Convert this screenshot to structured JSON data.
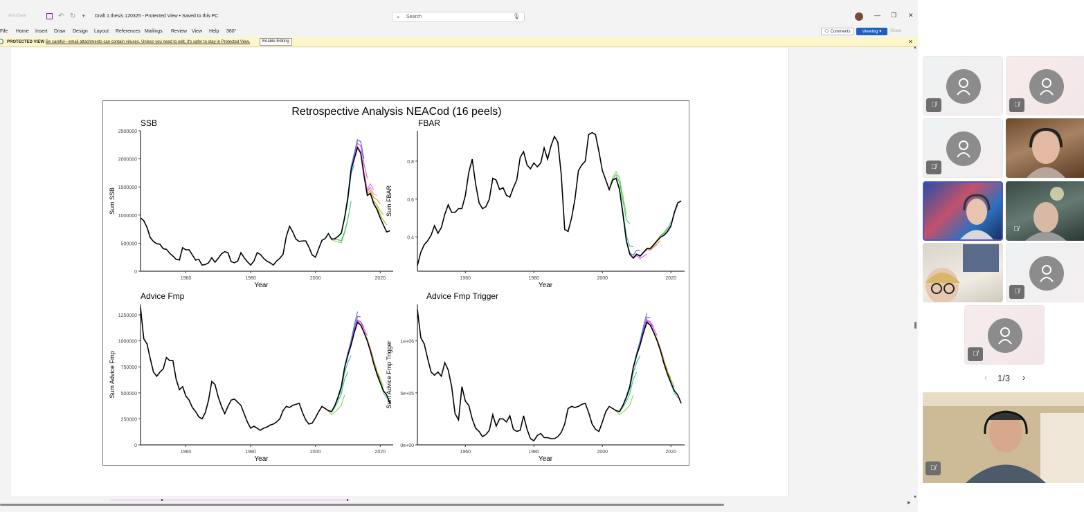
{
  "word": {
    "autosave_label": "AutoSave",
    "doc_title": "Draft 1 thesis 120325 - Protected View • Saved to this PC",
    "search_placeholder": "Search",
    "menu": [
      "File",
      "Home",
      "Insert",
      "Draw",
      "Design",
      "Layout",
      "References",
      "Mailings",
      "Review",
      "View",
      "Help",
      "360°"
    ],
    "comments_label": "Comments",
    "viewing_label": "Viewing",
    "share_label": "Share",
    "protected_label": "PROTECTED VIEW",
    "protected_message": "Be careful—email attachments can contain viruses. Unless you need to edit, it's safer to stay in Protected View.",
    "enable_editing_label": "Enable Editing"
  },
  "chart_data": {
    "title": "Retrospective Analysis NEACod (16 peels)",
    "panels": [
      {
        "type": "line",
        "name": "SSB",
        "xlabel": "Year",
        "ylabel": "Sum SSB",
        "xlim": [
          1946,
          2024
        ],
        "ylim": [
          0,
          2500000
        ],
        "xticks": [
          "1960",
          "1980",
          "2000",
          "2020"
        ],
        "yticks": [
          "0",
          "500000",
          "1000000",
          "1500000",
          "2000000",
          "2500000"
        ],
        "ytick_values": [
          0,
          500000,
          1000000,
          1500000,
          2000000,
          2500000
        ],
        "x": [
          1946,
          1947,
          1948,
          1949,
          1950,
          1951,
          1952,
          1953,
          1954,
          1955,
          1956,
          1957,
          1958,
          1959,
          1960,
          1961,
          1962,
          1963,
          1964,
          1965,
          1966,
          1967,
          1968,
          1969,
          1970,
          1971,
          1972,
          1973,
          1974,
          1975,
          1976,
          1977,
          1978,
          1979,
          1980,
          1981,
          1982,
          1983,
          1984,
          1985,
          1986,
          1987,
          1988,
          1989,
          1990,
          1991,
          1992,
          1993,
          1994,
          1995,
          1996,
          1997,
          1998,
          1999,
          2000,
          2001,
          2002,
          2003,
          2004,
          2005,
          2006,
          2007,
          2008,
          2009,
          2010,
          2011,
          2012,
          2013,
          2014,
          2015,
          2016,
          2017,
          2018,
          2019,
          2020,
          2021,
          2022,
          2023
        ],
        "y": [
          950000,
          900000,
          780000,
          600000,
          530000,
          490000,
          480000,
          400000,
          390000,
          320000,
          270000,
          210000,
          200000,
          420000,
          380000,
          380000,
          290000,
          200000,
          210000,
          110000,
          120000,
          150000,
          240000,
          160000,
          230000,
          310000,
          350000,
          330000,
          170000,
          150000,
          180000,
          330000,
          240000,
          170000,
          110000,
          180000,
          330000,
          300000,
          230000,
          180000,
          150000,
          110000,
          180000,
          230000,
          300000,
          620000,
          800000,
          700000,
          570000,
          530000,
          540000,
          540000,
          430000,
          290000,
          250000,
          400000,
          550000,
          580000,
          670000,
          570000,
          580000,
          620000,
          680000,
          950000,
          1300000,
          1800000,
          2000000,
          2200000,
          2100000,
          1700000,
          1350000,
          1380000,
          1200000,
          1100000,
          950000,
          820000,
          700000,
          720000
        ],
        "peel_ends": [
          [
            2010,
            910000
          ],
          [
            2011,
            1250000
          ],
          [
            2012,
            1900000
          ],
          [
            2013,
            2350000
          ],
          [
            2014,
            2300000
          ],
          [
            2015,
            2000000
          ],
          [
            2016,
            1650000
          ],
          [
            2017,
            1500000
          ],
          [
            2018,
            1450000
          ],
          [
            2019,
            1350000
          ],
          [
            2020,
            1200000
          ],
          [
            2021,
            1000000
          ],
          [
            2022,
            820000
          ]
        ]
      },
      {
        "type": "line",
        "name": "FBAR",
        "xlabel": "Year",
        "ylabel": "Sum FBAR",
        "xlim": [
          1946,
          2024
        ],
        "ylim": [
          0.22,
          0.96
        ],
        "xticks": [
          "1960",
          "1980",
          "2000",
          "2020"
        ],
        "yticks": [
          "0.4",
          "0.6",
          "0.8"
        ],
        "ytick_values": [
          0.4,
          0.6,
          0.8
        ],
        "x": [
          1946,
          1947,
          1948,
          1949,
          1950,
          1951,
          1952,
          1953,
          1954,
          1955,
          1956,
          1957,
          1958,
          1959,
          1960,
          1961,
          1962,
          1963,
          1964,
          1965,
          1966,
          1967,
          1968,
          1969,
          1970,
          1971,
          1972,
          1973,
          1974,
          1975,
          1976,
          1977,
          1978,
          1979,
          1980,
          1981,
          1982,
          1983,
          1984,
          1985,
          1986,
          1987,
          1988,
          1989,
          1990,
          1991,
          1992,
          1993,
          1994,
          1995,
          1996,
          1997,
          1998,
          1999,
          2000,
          2001,
          2002,
          2003,
          2004,
          2005,
          2006,
          2007,
          2008,
          2009,
          2010,
          2011,
          2012,
          2013,
          2014,
          2015,
          2016,
          2017,
          2018,
          2019,
          2020,
          2021,
          2022,
          2023
        ],
        "y": [
          0.25,
          0.32,
          0.36,
          0.38,
          0.41,
          0.46,
          0.42,
          0.45,
          0.52,
          0.57,
          0.53,
          0.53,
          0.55,
          0.55,
          0.62,
          0.74,
          0.81,
          0.68,
          0.58,
          0.55,
          0.56,
          0.6,
          0.71,
          0.7,
          0.65,
          0.66,
          0.62,
          0.61,
          0.66,
          0.7,
          0.82,
          0.85,
          0.78,
          0.76,
          0.79,
          0.77,
          0.79,
          0.87,
          0.81,
          0.88,
          0.93,
          0.9,
          0.73,
          0.44,
          0.43,
          0.5,
          0.6,
          0.75,
          0.78,
          0.8,
          0.94,
          0.95,
          0.94,
          0.85,
          0.75,
          0.7,
          0.65,
          0.7,
          0.71,
          0.65,
          0.52,
          0.38,
          0.31,
          0.29,
          0.31,
          0.3,
          0.32,
          0.34,
          0.34,
          0.36,
          0.38,
          0.4,
          0.41,
          0.43,
          0.46,
          0.53,
          0.58,
          0.59
        ],
        "peel_ends": [
          [
            2007,
            0.52
          ],
          [
            2008,
            0.47
          ],
          [
            2009,
            0.35
          ],
          [
            2010,
            0.31
          ],
          [
            2011,
            0.33
          ],
          [
            2012,
            0.32
          ],
          [
            2013,
            0.31
          ],
          [
            2014,
            0.33
          ],
          [
            2015,
            0.35
          ],
          [
            2016,
            0.36
          ],
          [
            2017,
            0.38
          ],
          [
            2018,
            0.42
          ],
          [
            2019,
            0.45
          ],
          [
            2020,
            0.48
          ],
          [
            2021,
            0.52
          ],
          [
            2022,
            0.57
          ]
        ]
      },
      {
        "type": "line",
        "name": "Advice Fmp",
        "xlabel": "Year",
        "ylabel": "Sum Advice Fmp",
        "xlim": [
          1946,
          2024
        ],
        "ylim": [
          0,
          1350000
        ],
        "xticks": [
          "1960",
          "1980",
          "2000",
          "2020"
        ],
        "yticks": [
          "0",
          "250000",
          "500000",
          "750000",
          "1000000",
          "1250000"
        ],
        "ytick_values": [
          0,
          250000,
          500000,
          750000,
          1000000,
          1250000
        ],
        "x": [
          1946,
          1947,
          1948,
          1949,
          1950,
          1951,
          1952,
          1953,
          1954,
          1955,
          1956,
          1957,
          1958,
          1959,
          1960,
          1961,
          1962,
          1963,
          1964,
          1965,
          1966,
          1967,
          1968,
          1969,
          1970,
          1971,
          1972,
          1973,
          1974,
          1975,
          1976,
          1977,
          1978,
          1979,
          1980,
          1981,
          1982,
          1983,
          1984,
          1985,
          1986,
          1987,
          1988,
          1989,
          1990,
          1991,
          1992,
          1993,
          1994,
          1995,
          1996,
          1997,
          1998,
          1999,
          2000,
          2001,
          2002,
          2003,
          2004,
          2005,
          2006,
          2007,
          2008,
          2009,
          2010,
          2011,
          2012,
          2013,
          2014,
          2015,
          2016,
          2017,
          2018,
          2019,
          2020,
          2021,
          2022,
          2023
        ],
        "y": [
          1320000,
          1020000,
          970000,
          830000,
          700000,
          660000,
          700000,
          730000,
          840000,
          810000,
          810000,
          630000,
          530000,
          560000,
          470000,
          430000,
          360000,
          320000,
          270000,
          250000,
          310000,
          430000,
          610000,
          580000,
          460000,
          370000,
          300000,
          370000,
          430000,
          440000,
          410000,
          380000,
          300000,
          220000,
          160000,
          180000,
          160000,
          140000,
          160000,
          170000,
          190000,
          200000,
          220000,
          250000,
          330000,
          370000,
          360000,
          380000,
          390000,
          400000,
          310000,
          240000,
          200000,
          210000,
          260000,
          320000,
          370000,
          350000,
          330000,
          320000,
          380000,
          460000,
          560000,
          740000,
          860000,
          960000,
          1080000,
          1180000,
          1150000,
          1080000,
          1000000,
          900000,
          780000,
          680000,
          600000,
          520000,
          480000,
          400000
        ],
        "peel_ends": [
          [
            2009,
            480000
          ],
          [
            2010,
            700000
          ],
          [
            2011,
            860000
          ],
          [
            2012,
            1100000
          ],
          [
            2013,
            1280000
          ],
          [
            2014,
            1230000
          ],
          [
            2015,
            1130000
          ],
          [
            2016,
            1050000
          ],
          [
            2017,
            920000
          ],
          [
            2018,
            820000
          ],
          [
            2019,
            720000
          ],
          [
            2020,
            640000
          ],
          [
            2021,
            560000
          ],
          [
            2022,
            450000
          ]
        ]
      },
      {
        "type": "line",
        "name": "Advice Fmp Trigger",
        "xlabel": "Year",
        "ylabel": "Sum Advice Fmp Trigger",
        "xlim": [
          1946,
          2024
        ],
        "ylim": [
          0,
          1350000
        ],
        "xticks": [
          "1960",
          "1980",
          "2000",
          "2020"
        ],
        "yticks": [
          "0e+00",
          "5e+05",
          "1e+06"
        ],
        "ytick_values": [
          0,
          500000,
          1000000
        ],
        "x": [
          1946,
          1947,
          1948,
          1949,
          1950,
          1951,
          1952,
          1953,
          1954,
          1955,
          1956,
          1957,
          1958,
          1959,
          1960,
          1961,
          1962,
          1963,
          1964,
          1965,
          1966,
          1967,
          1968,
          1969,
          1970,
          1971,
          1972,
          1973,
          1974,
          1975,
          1976,
          1977,
          1978,
          1979,
          1980,
          1981,
          1982,
          1983,
          1984,
          1985,
          1986,
          1987,
          1988,
          1989,
          1990,
          1991,
          1992,
          1993,
          1994,
          1995,
          1996,
          1997,
          1998,
          1999,
          2000,
          2001,
          2002,
          2003,
          2004,
          2005,
          2006,
          2007,
          2008,
          2009,
          2010,
          2011,
          2012,
          2013,
          2014,
          2015,
          2016,
          2017,
          2018,
          2019,
          2020,
          2021,
          2022,
          2023
        ],
        "y": [
          1300000,
          1030000,
          970000,
          830000,
          700000,
          670000,
          700000,
          660000,
          790000,
          720000,
          560000,
          300000,
          240000,
          560000,
          420000,
          380000,
          250000,
          160000,
          130000,
          80000,
          100000,
          140000,
          290000,
          180000,
          250000,
          250000,
          220000,
          280000,
          150000,
          130000,
          140000,
          280000,
          150000,
          60000,
          40000,
          90000,
          110000,
          70000,
          70000,
          60000,
          60000,
          80000,
          120000,
          200000,
          350000,
          370000,
          360000,
          370000,
          390000,
          400000,
          310000,
          200000,
          150000,
          130000,
          220000,
          320000,
          370000,
          350000,
          330000,
          320000,
          380000,
          460000,
          560000,
          740000,
          860000,
          960000,
          1080000,
          1180000,
          1150000,
          1080000,
          1000000,
          900000,
          780000,
          680000,
          600000,
          520000,
          480000,
          400000
        ],
        "peel_ends": [
          [
            2009,
            480000
          ],
          [
            2010,
            700000
          ],
          [
            2011,
            860000
          ],
          [
            2012,
            1100000
          ],
          [
            2013,
            1270000
          ],
          [
            2014,
            1220000
          ],
          [
            2015,
            1130000
          ],
          [
            2016,
            1050000
          ],
          [
            2017,
            920000
          ],
          [
            2018,
            820000
          ],
          [
            2019,
            720000
          ],
          [
            2020,
            640000
          ],
          [
            2021,
            560000
          ],
          [
            2022,
            450000
          ]
        ]
      }
    ],
    "peel_colors": [
      "#7fd64f",
      "#39c46a",
      "#2fb6a0",
      "#26a6d8",
      "#3a78e0",
      "#7a5fe0",
      "#c455e6",
      "#e44ae0",
      "#f06fcf",
      "#f08ac8",
      "#d99a2a",
      "#bba322",
      "#8fbf2a",
      "#4ccaa0",
      "#30b8e8",
      "#e070e0"
    ],
    "main_color": "#000000"
  },
  "teams": {
    "pager": "1/3"
  },
  "colors": {
    "accent": "#1f5fbf",
    "protected_bg": "#fdf6c8",
    "selected_tile": "#4a58c9"
  }
}
